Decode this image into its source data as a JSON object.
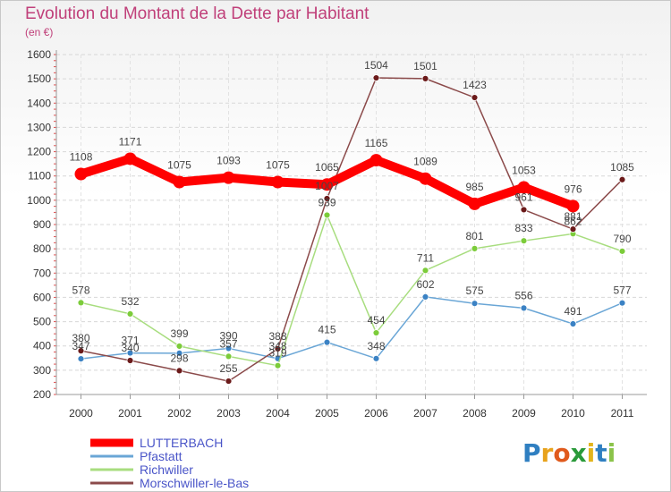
{
  "title": "Evolution du Montant de la Dette par Habitant",
  "unit": "(en €)",
  "brand": {
    "letters": [
      "P",
      "r",
      "o",
      "x",
      "i",
      "t",
      "i"
    ],
    "colors": [
      "#2f7fc1",
      "#e8a21c",
      "#e05a1c",
      "#2a9a3a",
      "#e3b51c",
      "#2f7fc1",
      "#8bc34a"
    ]
  },
  "chart_data": {
    "type": "line",
    "title": "Evolution du Montant de la Dette par Habitant",
    "ylabel": "(en €)",
    "xlabel": "",
    "x": [
      "2000",
      "2001",
      "2002",
      "2003",
      "2004",
      "2005",
      "2006",
      "2007",
      "2008",
      "2009",
      "2010",
      "2011"
    ],
    "ylim": [
      200,
      1600
    ],
    "yticks": [
      200,
      300,
      400,
      500,
      600,
      700,
      800,
      900,
      1000,
      1100,
      1200,
      1300,
      1400,
      1500,
      1600
    ],
    "grid": true,
    "legend_position": "bottom-left",
    "series": [
      {
        "name": "LUTTERBACH",
        "color": "#ff0000",
        "width": 10,
        "marker_color": "#ff0000",
        "values": [
          1108,
          1171,
          1075,
          1093,
          1075,
          1065,
          1165,
          1089,
          985,
          1053,
          976,
          null
        ],
        "labels": [
          "1108",
          "1171",
          "1075",
          "1093",
          "1075",
          "1065",
          "1165",
          "1089",
          "985",
          "1053",
          "976",
          ""
        ]
      },
      {
        "name": "Pfastatt",
        "color": "#6aa6d6",
        "width": 1.5,
        "marker_color": "#3b82c4",
        "values": [
          347,
          371,
          370,
          390,
          348,
          415,
          348,
          602,
          575,
          556,
          491,
          577
        ],
        "labels": [
          "347",
          "371",
          "",
          "390",
          "348",
          "415",
          "348",
          "602",
          "575",
          "556",
          "491",
          "577"
        ]
      },
      {
        "name": "Richwiller",
        "color": "#a8dd7f",
        "width": 1.5,
        "marker_color": "#7ccc3a",
        "values": [
          578,
          532,
          399,
          357,
          319,
          939,
          454,
          711,
          801,
          833,
          862,
          790
        ],
        "labels": [
          "578",
          "532",
          "399",
          "357",
          "319",
          "939",
          "454",
          "711",
          "801",
          "833",
          "862",
          "790"
        ]
      },
      {
        "name": "Morschwiller-le-Bas",
        "color": "#8b4a4a",
        "width": 1.5,
        "marker_color": "#6b1a1a",
        "values": [
          380,
          340,
          298,
          255,
          388,
          1007,
          1504,
          1501,
          1423,
          961,
          881,
          1085
        ],
        "labels": [
          "380",
          "340",
          "298",
          "255",
          "388",
          "1007",
          "1504",
          "1501",
          "1423",
          "961",
          "881",
          "1085"
        ]
      }
    ]
  }
}
